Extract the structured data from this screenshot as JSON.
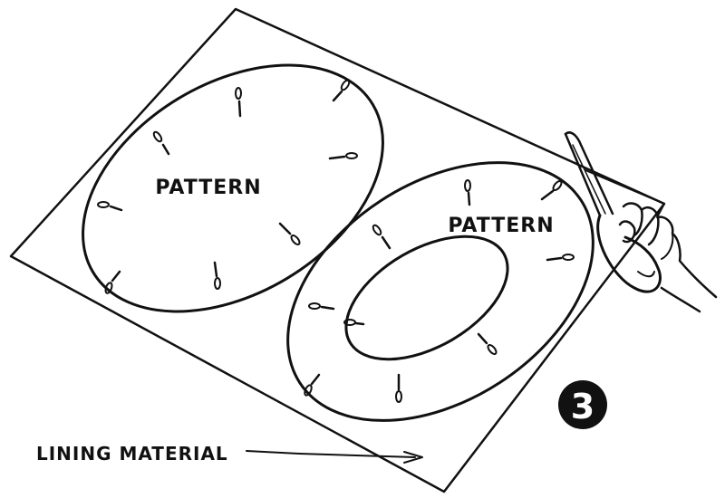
{
  "labels": {
    "pattern_oval": "PATTERN",
    "pattern_ring": "PATTERN",
    "lining_material": "LINING MATERIAL"
  },
  "step": {
    "number": "3",
    "badge_color": "#111111"
  },
  "colors": {
    "ink": "#111111",
    "paper": "#ffffff"
  }
}
